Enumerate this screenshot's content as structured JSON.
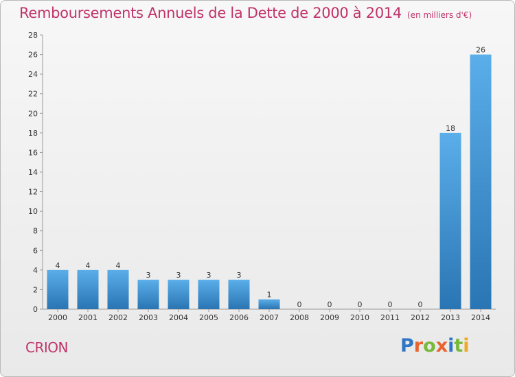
{
  "header": {
    "title": "Remboursements Annuels de la Dette de 2000 à 2014",
    "unit": "(en milliers d'€)"
  },
  "footer": {
    "commune": "CRION",
    "logo": "Proxiti",
    "logo_letters": [
      {
        "char": "P",
        "color": "#2f77c4"
      },
      {
        "char": "r",
        "color": "#e8632e"
      },
      {
        "char": "o",
        "color": "#79b939"
      },
      {
        "char": "x",
        "color": "#e8632e"
      },
      {
        "char": "i",
        "color": "#2f77c4"
      },
      {
        "char": "t",
        "color": "#79b939"
      },
      {
        "char": "i",
        "color": "#f0a820"
      }
    ]
  },
  "colors": {
    "accent": "#c0336a",
    "bar_top": "#5aaee9",
    "bar_bottom": "#2a75b3"
  },
  "chart_data": {
    "type": "bar",
    "categories": [
      "2000",
      "2001",
      "2002",
      "2003",
      "2004",
      "2005",
      "2006",
      "2007",
      "2008",
      "2009",
      "2010",
      "2011",
      "2012",
      "2013",
      "2014"
    ],
    "values": [
      4,
      4,
      4,
      3,
      3,
      3,
      3,
      1,
      0,
      0,
      0,
      0,
      0,
      18,
      26
    ],
    "data_labels": [
      "4",
      "4",
      "4",
      "3",
      "3",
      "3",
      "3",
      "1",
      "0",
      "0",
      "0",
      "0",
      "0",
      "18",
      "26"
    ],
    "title": "Remboursements Annuels de la Dette de 2000 à 2014",
    "ylim": [
      0,
      28
    ],
    "yticks": [
      0,
      2,
      4,
      6,
      8,
      10,
      12,
      14,
      16,
      18,
      20,
      22,
      24,
      26,
      28
    ],
    "grid": false,
    "legend": "none"
  }
}
